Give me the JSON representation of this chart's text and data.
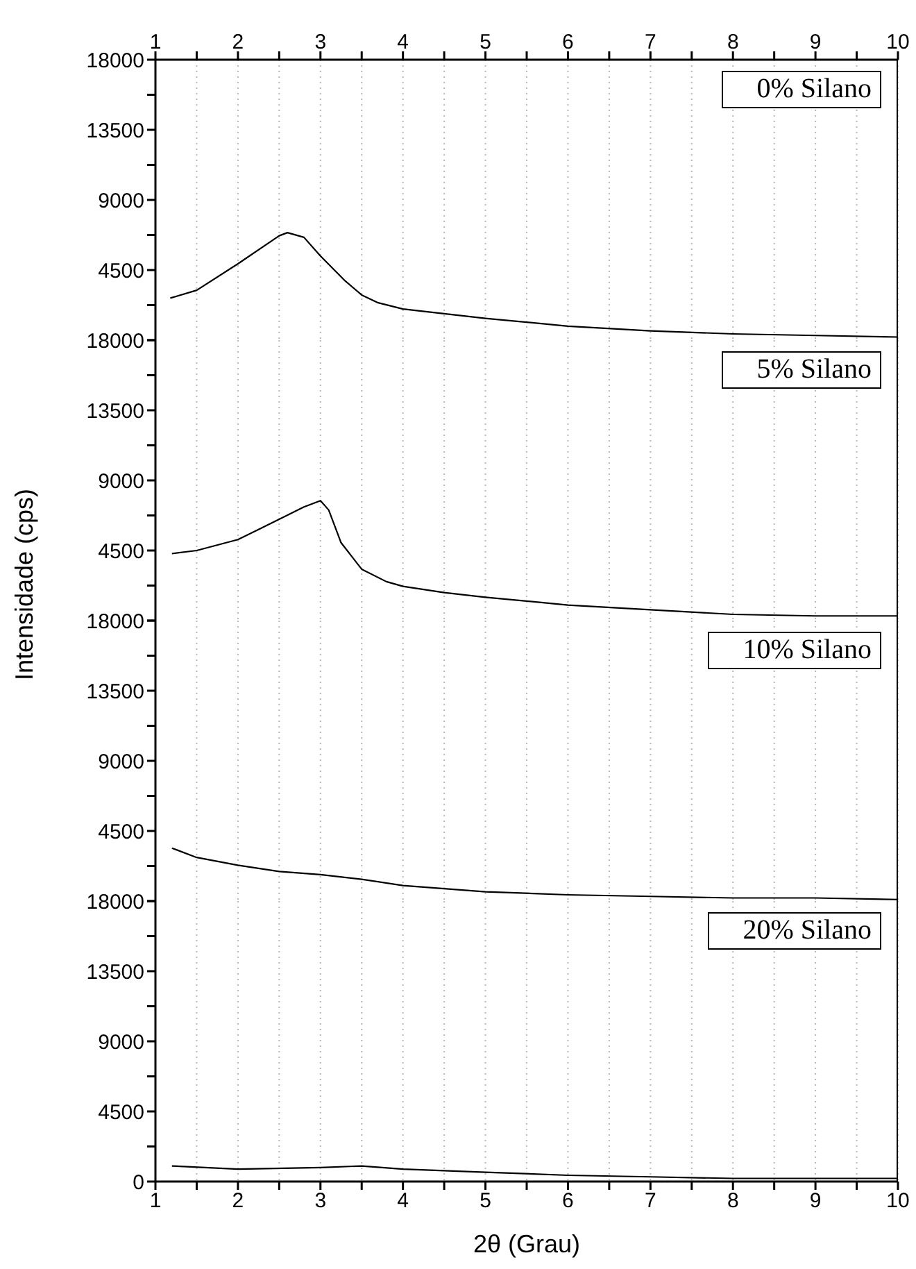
{
  "chart_data": [
    {
      "type": "line",
      "annotations": [
        "0% Silano"
      ],
      "grid": "x",
      "tick_labels": "y",
      "xlim": [
        1,
        10
      ],
      "ylim": [
        0,
        18000
      ],
      "xticks": [
        1,
        {
          "value": 1.5,
          "label": null
        },
        2,
        {
          "value": 2.5,
          "label": null
        },
        3,
        {
          "value": 3.5,
          "label": null
        },
        4,
        {
          "value": 4.5,
          "label": null
        },
        5,
        {
          "value": 5.5,
          "label": null
        },
        6,
        {
          "value": 6.5,
          "label": null
        },
        7,
        {
          "value": 7.5,
          "label": null
        },
        8,
        {
          "value": 8.5,
          "label": null
        },
        9,
        {
          "value": 9.5,
          "label": null
        },
        10
      ],
      "x2lim": [
        1,
        10
      ],
      "x2ticks": [
        1,
        {
          "value": 1.5,
          "label": null
        },
        2,
        {
          "value": 2.5,
          "label": null
        },
        3,
        {
          "value": 3.5,
          "label": null
        },
        4,
        {
          "value": 4.5,
          "label": null
        },
        5,
        {
          "value": 5.5,
          "label": null
        },
        6,
        {
          "value": 6.5,
          "label": null
        },
        7,
        {
          "value": 7.5,
          "label": null
        },
        8,
        {
          "value": 8.5,
          "label": null
        },
        9,
        {
          "value": 9.5,
          "label": null
        },
        10
      ],
      "yticks": [
        {
          "value": 0,
          "label": null
        },
        {
          "value": 2250,
          "label": null
        },
        4500,
        {
          "value": 6750,
          "label": null
        },
        9000,
        {
          "value": 11250,
          "label": null
        },
        13500,
        {
          "value": 15750,
          "label": null
        },
        18000
      ],
      "x": [
        1.18,
        1.5,
        2,
        2.5,
        2.6,
        2.8,
        3,
        3.3,
        3.5,
        3.7,
        4,
        4.5,
        5,
        6,
        7,
        8,
        9,
        10
      ],
      "series": [
        {
          "color": "#000000",
          "values": [
            2700,
            3200,
            4900,
            6700,
            6900,
            6600,
            5400,
            3800,
            2900,
            2400,
            2000,
            1700,
            1400,
            900,
            600,
            400,
            300,
            200
          ]
        }
      ]
    },
    {
      "type": "line",
      "ylabel": "Intensidade (cps)",
      "annotations": [
        "5% Silano"
      ],
      "grid": "x",
      "tick_labels": "y",
      "xlim": [
        1,
        10
      ],
      "ylim": [
        0,
        18000
      ],
      "xticks": [
        1,
        {
          "value": 1.5,
          "label": null
        },
        2,
        {
          "value": 2.5,
          "label": null
        },
        3,
        {
          "value": 3.5,
          "label": null
        },
        4,
        {
          "value": 4.5,
          "label": null
        },
        5,
        {
          "value": 5.5,
          "label": null
        },
        6,
        {
          "value": 6.5,
          "label": null
        },
        7,
        {
          "value": 7.5,
          "label": null
        },
        8,
        {
          "value": 8.5,
          "label": null
        },
        9,
        {
          "value": 9.5,
          "label": null
        },
        10
      ],
      "yticks": [
        {
          "value": 0,
          "label": null
        },
        {
          "value": 2250,
          "label": null
        },
        4500,
        {
          "value": 6750,
          "label": null
        },
        9000,
        {
          "value": 11250,
          "label": null
        },
        13500,
        {
          "value": 15750,
          "label": null
        },
        18000
      ],
      "x": [
        1.2,
        1.5,
        2,
        2.5,
        2.8,
        3,
        3.1,
        3.25,
        3.5,
        3.8,
        4,
        4.5,
        5,
        6,
        7,
        8,
        9,
        10
      ],
      "series": [
        {
          "color": "#000000",
          "values": [
            4300,
            4500,
            5200,
            6500,
            7300,
            7700,
            7100,
            5000,
            3300,
            2500,
            2200,
            1800,
            1500,
            1000,
            700,
            400,
            300,
            300
          ]
        }
      ]
    },
    {
      "type": "line",
      "annotations": [
        "10% Silano"
      ],
      "grid": "x",
      "tick_labels": "y",
      "xlim": [
        1,
        10
      ],
      "ylim": [
        0,
        18000
      ],
      "xticks": [
        1,
        {
          "value": 1.5,
          "label": null
        },
        2,
        {
          "value": 2.5,
          "label": null
        },
        3,
        {
          "value": 3.5,
          "label": null
        },
        4,
        {
          "value": 4.5,
          "label": null
        },
        5,
        {
          "value": 5.5,
          "label": null
        },
        6,
        {
          "value": 6.5,
          "label": null
        },
        7,
        {
          "value": 7.5,
          "label": null
        },
        8,
        {
          "value": 8.5,
          "label": null
        },
        9,
        {
          "value": 9.5,
          "label": null
        },
        10
      ],
      "yticks": [
        {
          "value": 0,
          "label": null
        },
        {
          "value": 2250,
          "label": null
        },
        4500,
        {
          "value": 6750,
          "label": null
        },
        9000,
        {
          "value": 11250,
          "label": null
        },
        13500,
        {
          "value": 15750,
          "label": null
        },
        18000
      ],
      "x": [
        1.2,
        1.5,
        2,
        2.5,
        3,
        3.5,
        4,
        4.5,
        5,
        6,
        7,
        8,
        9,
        10
      ],
      "series": [
        {
          "color": "#000000",
          "values": [
            3400,
            2800,
            2300,
            1900,
            1700,
            1400,
            1000,
            800,
            600,
            400,
            300,
            200,
            200,
            100
          ]
        }
      ]
    },
    {
      "type": "line",
      "annotations": [
        "20% Silano"
      ],
      "xlabel": "2θ (Grau)",
      "grid": "x",
      "xlim": [
        1,
        10
      ],
      "ylim": [
        0,
        18000
      ],
      "xticks": [
        1,
        {
          "value": 1.5,
          "label": null
        },
        2,
        {
          "value": 2.5,
          "label": null
        },
        3,
        {
          "value": 3.5,
          "label": null
        },
        4,
        {
          "value": 4.5,
          "label": null
        },
        5,
        {
          "value": 5.5,
          "label": null
        },
        6,
        {
          "value": 6.5,
          "label": null
        },
        7,
        {
          "value": 7.5,
          "label": null
        },
        8,
        {
          "value": 8.5,
          "label": null
        },
        9,
        {
          "value": 9.5,
          "label": null
        },
        10
      ],
      "yticks": [
        0,
        {
          "value": 2250,
          "label": null
        },
        4500,
        {
          "value": 6750,
          "label": null
        },
        9000,
        {
          "value": 11250,
          "label": null
        },
        13500,
        {
          "value": 15750,
          "label": null
        },
        18000
      ],
      "x": [
        1.2,
        2,
        3,
        3.5,
        4,
        5,
        6,
        7,
        8,
        9,
        10
      ],
      "series": [
        {
          "color": "#000000",
          "values": [
            1000,
            800,
            900,
            1000,
            800,
            600,
            400,
            300,
            200,
            200,
            200
          ]
        }
      ]
    }
  ]
}
